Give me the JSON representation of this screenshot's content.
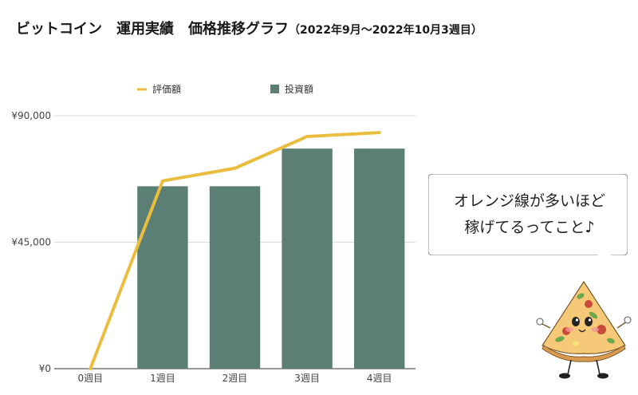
{
  "title": {
    "main": "ビットコイン　運用実績　価格推移グラフ",
    "period": "（2022年9月〜2022年10月3週目）"
  },
  "legend": {
    "line_label": "評価額",
    "bar_label": "投資額"
  },
  "colors": {
    "line": "#EBBD3F",
    "bar": "#5B7F74",
    "grid": "#D9D9D9",
    "axis": "#333333"
  },
  "chart_data": {
    "type": "bar",
    "categories": [
      "0週目",
      "1週目",
      "2週目",
      "3週目",
      "4週目"
    ],
    "ylim": [
      0,
      90000
    ],
    "yticks": [
      0,
      45000,
      90000
    ],
    "ytick_labels": [
      "¥0",
      "¥45,000",
      "¥90,000"
    ],
    "grid": true,
    "legend_position": "top",
    "series": [
      {
        "name": "投資額",
        "type": "bar",
        "values": [
          0,
          64900,
          64900,
          78300,
          78300
        ]
      },
      {
        "name": "評価額",
        "type": "line",
        "values": [
          0,
          66800,
          71300,
          82600,
          84000
        ]
      }
    ]
  },
  "callout": {
    "line1": "オレンジ線が多いほど",
    "line2": "稼げてるってこと♪"
  },
  "mascot": {
    "icon": "pizza-mascot-icon"
  }
}
